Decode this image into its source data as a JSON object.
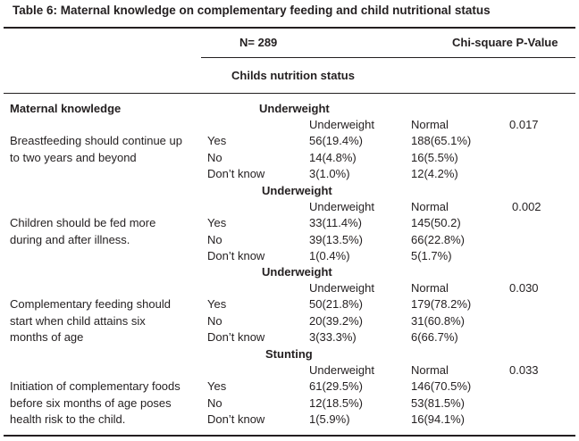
{
  "title": "Table 6: Maternal knowledge on complementary feeding and child nutritional status",
  "header": {
    "n": "N= 289",
    "chi": "Chi-square P-Value",
    "subheading": "Childs nutrition status",
    "stub": "Maternal knowledge"
  },
  "blocks": [
    {
      "group": "Underweight",
      "col1": "Underweight",
      "col2": "Normal",
      "p": "0.017",
      "statement": [
        "Breastfeeding should continue up",
        "to two years and beyond"
      ],
      "rows": [
        {
          "resp": "Yes",
          "v1": "56(19.4%)",
          "v2": "188(65.1%)"
        },
        {
          "resp": "No",
          "v1": "14(4.8%)",
          "v2": "16(5.5%)"
        },
        {
          "resp": "Don’t know",
          "v1": "3(1.0%)",
          "v2": "12(4.2%)"
        }
      ]
    },
    {
      "group": "Underweight",
      "col1": "Underweight",
      "col2": "Normal",
      "p": "0.002",
      "statement": [
        "Children should be fed more",
        "during and after illness."
      ],
      "rows": [
        {
          "resp": "Yes",
          "v1": "33(11.4%)",
          "v2": "145(50.2)"
        },
        {
          "resp": "No",
          "v1": "39(13.5%)",
          "v2": "66(22.8%)"
        },
        {
          "resp": "Don’t know",
          "v1": "1(0.4%)",
          "v2": "5(1.7%)"
        }
      ]
    },
    {
      "group": "Underweight",
      "col1": "Underweight",
      "col2": "Normal",
      "p": "0.030",
      "statement": [
        "Complementary feeding should",
        "start when child attains six",
        "months of age"
      ],
      "rows": [
        {
          "resp": "Yes",
          "v1": "50(21.8%)",
          "v2": "179(78.2%)"
        },
        {
          "resp": "No",
          "v1": "20(39.2%)",
          "v2": "31(60.8%)"
        },
        {
          "resp": "Don’t know",
          "v1": "3(33.3%)",
          "v2": "6(66.7%)"
        }
      ]
    },
    {
      "group": "Stunting",
      "col1": "Underweight",
      "col2": "Normal",
      "p": "0.033",
      "statement": [
        "Initiation of complementary foods",
        "before six months of age poses",
        "health risk to the child."
      ],
      "rows": [
        {
          "resp": "Yes",
          "v1": "61(29.5%)",
          "v2": "146(70.5%)"
        },
        {
          "resp": "No",
          "v1": "12(18.5%)",
          "v2": "53(81.5%)"
        },
        {
          "resp": "Don’t know",
          "v1": "1(5.9%)",
          "v2": "16(94.1%)"
        }
      ]
    }
  ]
}
